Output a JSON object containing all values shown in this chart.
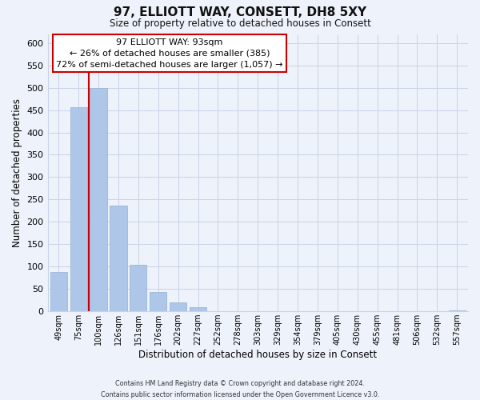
{
  "title_line1": "97, ELLIOTT WAY, CONSETT, DH8 5XY",
  "title_line2": "Size of property relative to detached houses in Consett",
  "xlabel": "Distribution of detached houses by size in Consett",
  "ylabel": "Number of detached properties",
  "bar_labels": [
    "49sqm",
    "75sqm",
    "100sqm",
    "126sqm",
    "151sqm",
    "176sqm",
    "202sqm",
    "227sqm",
    "252sqm",
    "278sqm",
    "303sqm",
    "329sqm",
    "354sqm",
    "379sqm",
    "405sqm",
    "430sqm",
    "455sqm",
    "481sqm",
    "506sqm",
    "532sqm",
    "557sqm"
  ],
  "bar_values": [
    88,
    457,
    500,
    236,
    104,
    44,
    20,
    10,
    0,
    0,
    0,
    0,
    0,
    0,
    0,
    0,
    0,
    0,
    0,
    0,
    2
  ],
  "bar_color": "#aec6e8",
  "bar_edge_color": "#9ab8d8",
  "grid_color": "#c8d4e8",
  "ylim": [
    0,
    620
  ],
  "yticks": [
    0,
    50,
    100,
    150,
    200,
    250,
    300,
    350,
    400,
    450,
    500,
    550,
    600
  ],
  "annotation_text_line1": "97 ELLIOTT WAY: 93sqm",
  "annotation_text_line2": "← 26% of detached houses are smaller (385)",
  "annotation_text_line3": "72% of semi-detached houses are larger (1,057) →",
  "red_line_color": "#cc0000",
  "annotation_box_color": "#ffffff",
  "annotation_box_edge_color": "#cc0000",
  "footer_line1": "Contains HM Land Registry data © Crown copyright and database right 2024.",
  "footer_line2": "Contains public sector information licensed under the Open Government Licence v3.0.",
  "background_color": "#eef2fa"
}
